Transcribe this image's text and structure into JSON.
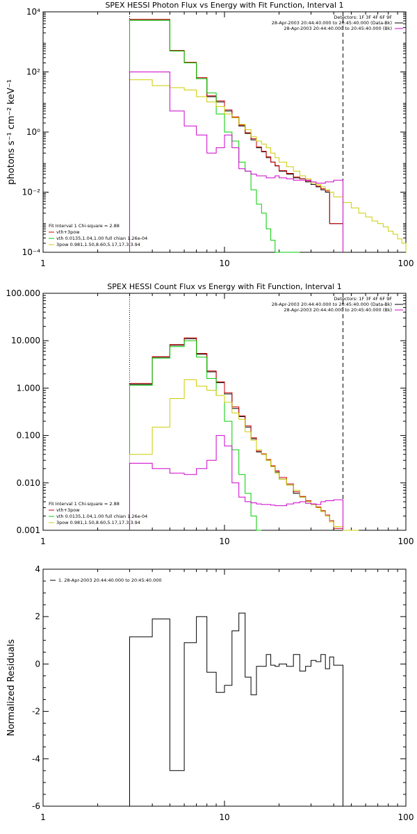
{
  "chart_data": [
    {
      "type": "line",
      "title": "SPEX HESSI Photon Flux vs Energy with Fit Function, Interval 1",
      "xlabel": "",
      "ylabel": "photons s⁻¹ cm⁻² keV⁻¹",
      "x_scale": "log",
      "y_scale": "log",
      "xlim": [
        1,
        100
      ],
      "ylim": [
        0.0001,
        10000
      ],
      "x_ticks": [
        "1",
        "10",
        "100"
      ],
      "y_ticks": [
        "10⁻⁴",
        "10⁻²",
        "10⁰",
        "10²",
        "10⁴"
      ],
      "y_tick_values": [
        0.0001,
        0.01,
        1,
        100,
        10000
      ],
      "vlines": [
        {
          "x": 3,
          "style": "dotted",
          "color": "#000000"
        },
        {
          "x": 45,
          "style": "dashed",
          "color": "#000000"
        }
      ],
      "header_lines": [
        {
          "text": "Detectors: 1F 3F 4F 6F 9F",
          "color": "#000000"
        },
        {
          "text": "28-Apr-2003 20:44:40.000 to 20:45:40.000 (Data-Bk)",
          "color": "#000000"
        },
        {
          "text": "28-Apr-2003 20:44:40.000 to 20:45:40.000 (Bk)",
          "color": "#cc00cc"
        }
      ],
      "legend": [
        {
          "text": "Fit Interval 1   Chi-square = 2.88",
          "color": "#000000"
        },
        {
          "text": "vth+3pow",
          "color": "#cc0000"
        },
        {
          "text": "vth 0.0135,1.04,1.00  full chian 1.26e-04",
          "color": "#00cc00"
        },
        {
          "text": "3pow 0.981,1.50,8.60,5.17,17.3,3.94",
          "color": "#cccc00"
        }
      ],
      "legend_position": "bottom-left",
      "edges": [
        3,
        4,
        5,
        6,
        7,
        8,
        9,
        10,
        11,
        12,
        13,
        14,
        15,
        16,
        17,
        18,
        19,
        20,
        22,
        24,
        26,
        28,
        30,
        32,
        34,
        36,
        38,
        40,
        45,
        50,
        55,
        60,
        65,
        70,
        75,
        80,
        85,
        90,
        95,
        100
      ],
      "series": [
        {
          "name": "Data-Bk",
          "color": "#000000",
          "edge_count": 29,
          "values": [
            5500,
            5500,
            500,
            200,
            60,
            15,
            10,
            5,
            3,
            1.6,
            0.9,
            0.55,
            0.3,
            0.22,
            0.14,
            0.1,
            0.075,
            0.05,
            0.04,
            0.03,
            0.028,
            0.022,
            0.018,
            0.015,
            0.012,
            0.01,
            0.0009,
            0.0009
          ]
        },
        {
          "name": "vth+3pow",
          "color": "#cc0000",
          "edge_count": 29,
          "values": [
            5600,
            5600,
            520,
            210,
            65,
            16,
            11,
            5.5,
            3.2,
            1.7,
            0.95,
            0.6,
            0.32,
            0.23,
            0.15,
            0.1,
            0.077,
            0.052,
            0.042,
            0.032,
            0.028,
            0.024,
            0.02,
            0.016,
            0.013,
            0.011,
            0.0009,
            0.0009
          ]
        },
        {
          "name": "vth",
          "color": "#00cc00",
          "edge_count": 21,
          "values": [
            5200,
            5200,
            500,
            200,
            60,
            20,
            4,
            1,
            0.5,
            0.1,
            0.05,
            0.012,
            0.004,
            0.002,
            0.0006,
            0.00025,
            0.0001,
            0.0001,
            5e-05,
            5e-05
          ]
        },
        {
          "name": "3pow",
          "color": "#cccc00",
          "edge_count": 40,
          "values": [
            55,
            35,
            30,
            25,
            15,
            10,
            7,
            4,
            3,
            1.8,
            1.2,
            0.7,
            0.5,
            0.4,
            0.3,
            0.2,
            0.14,
            0.1,
            0.07,
            0.05,
            0.035,
            0.028,
            0.02,
            0.018,
            0.015,
            0.012,
            0.01,
            0.007,
            0.0045,
            0.003,
            0.002,
            0.0015,
            0.0011,
            0.0009,
            0.0007,
            0.0005,
            0.0004,
            0.00028,
            0.0002
          ]
        },
        {
          "name": "Bk",
          "color": "#cc00cc",
          "edge_count": 29,
          "values": [
            100,
            100,
            5,
            1.6,
            0.8,
            0.2,
            0.3,
            0.8,
            0.3,
            0.06,
            0.05,
            0.04,
            0.035,
            0.035,
            0.03,
            0.03,
            0.035,
            0.03,
            0.028,
            0.025,
            0.025,
            0.025,
            0.022,
            0.02,
            0.02,
            0.022,
            0.022,
            0.025
          ]
        }
      ]
    },
    {
      "type": "line",
      "title": "SPEX HESSI Count Flux vs Energy with Fit Function, Interval 1",
      "xlabel": "",
      "ylabel": "",
      "x_scale": "log",
      "y_scale": "log",
      "xlim": [
        1,
        100
      ],
      "ylim": [
        0.001,
        100
      ],
      "x_ticks": [
        "1",
        "10",
        "100"
      ],
      "y_ticks": [
        "0.001",
        "0.010",
        "0.100",
        "1.000",
        "10.000",
        "100.000"
      ],
      "y_tick_values": [
        0.001,
        0.01,
        0.1,
        1,
        10,
        100
      ],
      "vlines": [
        {
          "x": 3,
          "style": "dotted",
          "color": "#000000"
        },
        {
          "x": 45,
          "style": "dashed",
          "color": "#000000"
        }
      ],
      "header_lines": [
        {
          "text": "Detectors: 1F 3F 4F 6F 9F",
          "color": "#000000"
        },
        {
          "text": "28-Apr-2003 20:44:40.000 to 20:45:40.000 (Data-Bk)",
          "color": "#000000"
        },
        {
          "text": "28-Apr-2003 20:44:40.000 to 20:45:40.000 (Bk)",
          "color": "#cc00cc"
        }
      ],
      "legend": [
        {
          "text": "Fit Interval 1   Chi-square = 2.88",
          "color": "#000000"
        },
        {
          "text": "vth+3pow",
          "color": "#cc0000"
        },
        {
          "text": "vth 0.0135,1.04,1.00  full chian 1.26e-04",
          "color": "#00cc00"
        },
        {
          "text": "3pow 0.981,1.50,8.60,5.17,17.3,3.94",
          "color": "#cccc00"
        }
      ],
      "legend_position": "bottom-left",
      "edges": [
        3,
        4,
        5,
        6,
        7,
        8,
        9,
        10,
        11,
        12,
        13,
        14,
        15,
        16,
        17,
        18,
        19,
        20,
        22,
        24,
        26,
        28,
        30,
        32,
        34,
        36,
        38,
        40,
        45,
        50,
        55
      ],
      "series": [
        {
          "name": "Data-Bk",
          "color": "#000000",
          "edge_count": 29,
          "values": [
            1.2,
            4.5,
            8,
            11,
            5.2,
            2.2,
            1.3,
            0.75,
            0.37,
            0.25,
            0.15,
            0.085,
            0.045,
            0.04,
            0.03,
            0.022,
            0.017,
            0.012,
            0.009,
            0.006,
            0.005,
            0.004,
            0.0035,
            0.003,
            0.0025,
            0.002,
            0.0015,
            0.001
          ]
        },
        {
          "name": "vth+3pow",
          "color": "#cc0000",
          "edge_count": 29,
          "values": [
            1.25,
            4.6,
            8.3,
            11.5,
            5.4,
            2.3,
            1.35,
            0.8,
            0.4,
            0.26,
            0.16,
            0.09,
            0.047,
            0.041,
            0.031,
            0.023,
            0.018,
            0.013,
            0.0095,
            0.0065,
            0.0052,
            0.0042,
            0.0036,
            0.0031,
            0.0026,
            0.0021,
            0.0016,
            0.0011
          ]
        },
        {
          "name": "vth",
          "color": "#00cc00",
          "edge_count": 14,
          "values": [
            1.15,
            4.3,
            7.5,
            10,
            4.5,
            1.6,
            0.7,
            0.2,
            0.05,
            0.015,
            0.006,
            0.002,
            0.0008
          ]
        },
        {
          "name": "3pow",
          "color": "#cccc00",
          "edge_count": 31,
          "values": [
            0.04,
            0.15,
            0.6,
            1.5,
            1.1,
            0.9,
            0.7,
            0.5,
            0.3,
            0.22,
            0.12,
            0.08,
            0.05,
            0.04,
            0.03,
            0.022,
            0.016,
            0.012,
            0.009,
            0.007,
            0.005,
            0.004,
            0.0035,
            0.003,
            0.0025,
            0.002,
            0.0015,
            0.0012,
            0.0008,
            0.0005
          ]
        },
        {
          "name": "Bk",
          "color": "#cc00cc",
          "edge_count": 29,
          "values": [
            0.026,
            0.02,
            0.016,
            0.015,
            0.02,
            0.03,
            0.1,
            0.06,
            0.01,
            0.005,
            0.004,
            0.0038,
            0.0036,
            0.0035,
            0.0035,
            0.0034,
            0.0033,
            0.0033,
            0.0036,
            0.0038,
            0.004,
            0.0037,
            0.0036,
            0.0035,
            0.004,
            0.0042,
            0.0042,
            0.0044
          ]
        }
      ]
    },
    {
      "type": "line",
      "title": "",
      "xlabel": "",
      "ylabel": "Normalized Residuals",
      "x_scale": "log",
      "y_scale": "linear",
      "xlim": [
        1,
        100
      ],
      "ylim": [
        -6,
        4
      ],
      "x_ticks": [
        "1",
        "10",
        "100"
      ],
      "y_ticks": [
        "-6",
        "-4",
        "-2",
        "0",
        "2",
        "4"
      ],
      "y_tick_values": [
        -6,
        -4,
        -2,
        0,
        2,
        4
      ],
      "legend": [
        {
          "text": "1. 28-Apr-2003 20:44:40.000 to 20:45:40.000",
          "color": "#000000"
        }
      ],
      "legend_position": "top-left",
      "edges": [
        3,
        4,
        5,
        6,
        7,
        8,
        9,
        10,
        11,
        12,
        13,
        14,
        15,
        16,
        17,
        18,
        19,
        20,
        22,
        24,
        26,
        28,
        30,
        32,
        34,
        36,
        38,
        40,
        45
      ],
      "series": [
        {
          "name": "1. 28-Apr-2003 20:44:40.000 to 20:45:40.000",
          "color": "#000000",
          "edge_count": 29,
          "values": [
            1.15,
            1.9,
            -4.5,
            0.9,
            2.0,
            -0.35,
            -1.2,
            -0.9,
            1.4,
            2.15,
            -0.55,
            -1.3,
            -0.1,
            -0.1,
            0.4,
            -0.05,
            -0.1,
            0.0,
            -0.1,
            0.4,
            -0.3,
            -0.1,
            0.15,
            0.1,
            0.4,
            -0.2,
            0.3,
            -0.05
          ],
          "drop_to": -6
        }
      ]
    }
  ]
}
